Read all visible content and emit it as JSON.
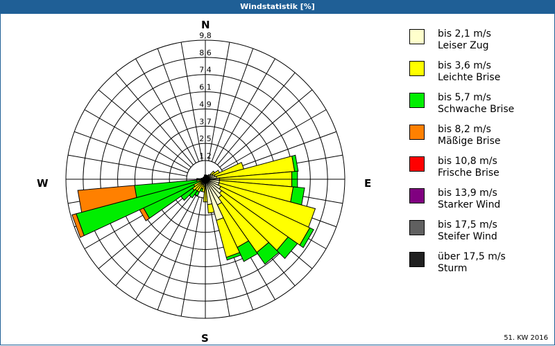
{
  "header": {
    "title": "Windstatistik [%]"
  },
  "compass": {
    "n": "N",
    "e": "E",
    "s": "S",
    "w": "W"
  },
  "footer": {
    "week": "51. KW 2016"
  },
  "legend": [
    {
      "range": "bis 2,1 m/s",
      "label": "Leiser Zug",
      "color": "#ffffcc"
    },
    {
      "range": "bis 3,6 m/s",
      "label": "Leichte Brise",
      "color": "#ffff00"
    },
    {
      "range": "bis 5,7 m/s",
      "label": "Schwache Brise",
      "color": "#00ee00"
    },
    {
      "range": "bis 8,2 m/s",
      "label": "Mäßige Brise",
      "color": "#ff8000"
    },
    {
      "range": "bis 10,8 m/s",
      "label": "Frische Brise",
      "color": "#ff0000"
    },
    {
      "range": "bis 13,9 m/s",
      "label": "Starker Wind",
      "color": "#800080"
    },
    {
      "range": "bis 17,5 m/s",
      "label": "Steifer Wind",
      "color": "#606060"
    },
    {
      "range": "über 17,5 m/s",
      "label": "Sturm",
      "color": "#202020"
    }
  ],
  "chart_data": {
    "type": "polar-stacked-bar",
    "title": "Windstatistik [%]",
    "subtitle": "51. KW 2016",
    "radial_ticks": [
      "1,2",
      "2,5",
      "3,7",
      "4,9",
      "6,1",
      "7,4",
      "8,6",
      "9,8"
    ],
    "radial_max": 9.8,
    "directions_deg_step": 10,
    "series": [
      "Leiser Zug",
      "Leichte Brise",
      "Schwache Brise",
      "Mäßige Brise",
      "Frische Brise",
      "Starker Wind",
      "Steifer Wind",
      "Sturm"
    ],
    "sectors": [
      {
        "deg": 0,
        "values": [
          0.3,
          0,
          0,
          0
        ]
      },
      {
        "deg": 10,
        "values": [
          0.3,
          0,
          0,
          0
        ]
      },
      {
        "deg": 20,
        "values": [
          0.3,
          0,
          0,
          0
        ]
      },
      {
        "deg": 30,
        "values": [
          0.3,
          0,
          0,
          0
        ]
      },
      {
        "deg": 40,
        "values": [
          0.4,
          0,
          0,
          0
        ]
      },
      {
        "deg": 50,
        "values": [
          0.5,
          0.3,
          0,
          0
        ]
      },
      {
        "deg": 60,
        "values": [
          0.6,
          0.5,
          0,
          0
        ]
      },
      {
        "deg": 70,
        "values": [
          0.7,
          2.1,
          0,
          0
        ]
      },
      {
        "deg": 80,
        "values": [
          0.8,
          5.5,
          0.25,
          0
        ]
      },
      {
        "deg": 90,
        "values": [
          1.0,
          5.1,
          0.4,
          0
        ]
      },
      {
        "deg": 100,
        "values": [
          1.0,
          5.2,
          0.8,
          0
        ]
      },
      {
        "deg": 110,
        "values": [
          1.0,
          7.0,
          0,
          0
        ]
      },
      {
        "deg": 120,
        "values": [
          1.2,
          6.9,
          0.3,
          0
        ]
      },
      {
        "deg": 130,
        "values": [
          1.4,
          5.7,
          0.8,
          0
        ]
      },
      {
        "deg": 140,
        "values": [
          1.6,
          4.7,
          1.0,
          0
        ]
      },
      {
        "deg": 150,
        "values": [
          2.0,
          3.3,
          1.1,
          0
        ]
      },
      {
        "deg": 160,
        "values": [
          3.0,
          2.7,
          0.2,
          0
        ]
      },
      {
        "deg": 170,
        "values": [
          1.8,
          0.6,
          0,
          0
        ]
      },
      {
        "deg": 180,
        "values": [
          0.6,
          1.0,
          0,
          0
        ]
      },
      {
        "deg": 190,
        "values": [
          0.5,
          0.4,
          0,
          0
        ]
      },
      {
        "deg": 200,
        "values": [
          0.4,
          0.3,
          0.2,
          0
        ]
      },
      {
        "deg": 210,
        "values": [
          0.4,
          0.6,
          0.3,
          0
        ]
      },
      {
        "deg": 220,
        "values": [
          0.4,
          0.6,
          0.6,
          0
        ]
      },
      {
        "deg": 230,
        "values": [
          0.3,
          0.8,
          1.0,
          0
        ]
      },
      {
        "deg": 240,
        "values": [
          0.3,
          0.6,
          3.9,
          0.3
        ]
      },
      {
        "deg": 250,
        "values": [
          0.2,
          0.2,
          9.0,
          0.3
        ]
      },
      {
        "deg": 260,
        "values": [
          0.2,
          0.4,
          4.4,
          4.0
        ]
      },
      {
        "deg": 270,
        "values": [
          0.2,
          0.2,
          0.2,
          0
        ]
      },
      {
        "deg": 280,
        "values": [
          0.2,
          0.1,
          0,
          0
        ]
      },
      {
        "deg": 290,
        "values": [
          0.2,
          0,
          0,
          0
        ]
      },
      {
        "deg": 300,
        "values": [
          0.2,
          0,
          0,
          0
        ]
      },
      {
        "deg": 310,
        "values": [
          0.2,
          0,
          0,
          0
        ]
      },
      {
        "deg": 320,
        "values": [
          0.2,
          0,
          0,
          0
        ]
      },
      {
        "deg": 330,
        "values": [
          0.2,
          0,
          0,
          0
        ]
      },
      {
        "deg": 340,
        "values": [
          0.2,
          0,
          0,
          0
        ]
      },
      {
        "deg": 350,
        "values": [
          0.3,
          0,
          0,
          0
        ]
      }
    ]
  }
}
